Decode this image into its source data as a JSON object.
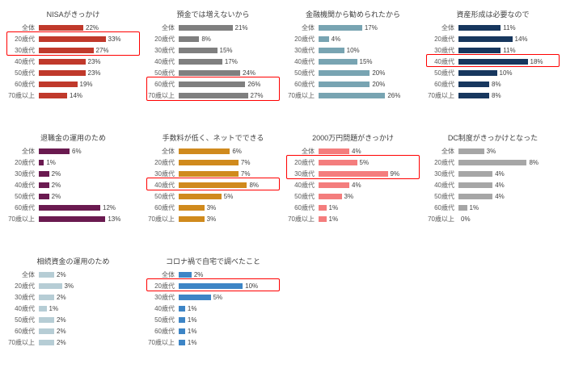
{
  "page": {
    "background": "#ffffff",
    "highlight_box_color": "#ff0000"
  },
  "categories": [
    "全体",
    "20歳代",
    "30歳代",
    "40歳代",
    "50歳代",
    "60歳代",
    "70歳以上"
  ],
  "chart_data": [
    {
      "type": "bar",
      "orientation": "horizontal",
      "title": "NISAがきっかけ",
      "color": "#c0392b",
      "unit": "%",
      "xlim": [
        0,
        38
      ],
      "categories": [
        "全体",
        "20歳代",
        "30歳代",
        "40歳代",
        "50歳代",
        "60歳代",
        "70歳以上"
      ],
      "values": [
        22,
        33,
        27,
        23,
        23,
        19,
        14
      ],
      "value_labels": [
        "22%",
        "33%",
        "27%",
        "23%",
        "23%",
        "19%",
        "14%"
      ],
      "highlighted_categories": [
        "20歳代",
        "30歳代"
      ],
      "highlight_rows": [
        1,
        2
      ]
    },
    {
      "type": "bar",
      "orientation": "horizontal",
      "title": "預金では増えないから",
      "color": "#7f7f7f",
      "unit": "%",
      "xlim": [
        0,
        30
      ],
      "categories": [
        "全体",
        "20歳代",
        "30歳代",
        "40歳代",
        "50歳代",
        "60歳代",
        "70歳以上"
      ],
      "values": [
        21,
        8,
        15,
        17,
        24,
        26,
        27
      ],
      "value_labels": [
        "21%",
        "8%",
        "15%",
        "17%",
        "24%",
        "26%",
        "27%"
      ],
      "highlighted_categories": [
        "60歳代",
        "70歳以上"
      ],
      "highlight_rows": [
        5,
        6
      ]
    },
    {
      "type": "bar",
      "orientation": "horizontal",
      "title": "金融機関から勧められたから",
      "color": "#78a4b2",
      "unit": "%",
      "xlim": [
        0,
        30
      ],
      "categories": [
        "全体",
        "20歳代",
        "30歳代",
        "40歳代",
        "50歳代",
        "60歳代",
        "70歳以上"
      ],
      "values": [
        17,
        4,
        10,
        15,
        20,
        20,
        26
      ],
      "value_labels": [
        "17%",
        "4%",
        "10%",
        "15%",
        "20%",
        "20%",
        "26%"
      ],
      "highlighted_categories": [],
      "highlight_rows": []
    },
    {
      "type": "bar",
      "orientation": "horizontal",
      "title": "資産形成は必要なので",
      "color": "#17375e",
      "unit": "%",
      "xlim": [
        0,
        20
      ],
      "categories": [
        "全体",
        "20歳代",
        "30歳代",
        "40歳代",
        "50歳代",
        "60歳代",
        "70歳以上"
      ],
      "values": [
        11,
        14,
        11,
        18,
        10,
        8,
        8
      ],
      "value_labels": [
        "11%",
        "14%",
        "11%",
        "18%",
        "10%",
        "8%",
        "8%"
      ],
      "highlighted_categories": [
        "40歳代"
      ],
      "highlight_rows": [
        3
      ]
    },
    {
      "type": "bar",
      "orientation": "horizontal",
      "title": "退職金の運用のため",
      "color": "#6a1a50",
      "unit": "%",
      "xlim": [
        0,
        15
      ],
      "categories": [
        "全体",
        "20歳代",
        "30歳代",
        "40歳代",
        "50歳代",
        "60歳代",
        "70歳以上"
      ],
      "values": [
        6,
        1,
        2,
        2,
        2,
        12,
        13
      ],
      "value_labels": [
        "6%",
        "1%",
        "2%",
        "2%",
        "2%",
        "12%",
        "13%"
      ],
      "highlighted_categories": [],
      "highlight_rows": []
    },
    {
      "type": "bar",
      "orientation": "horizontal",
      "title": "手数料が低く、ネットでできる",
      "color": "#d08a1d",
      "unit": "%",
      "xlim": [
        0,
        9
      ],
      "categories": [
        "全体",
        "20歳代",
        "30歳代",
        "40歳代",
        "50歳代",
        "60歳代",
        "70歳以上"
      ],
      "values": [
        6,
        7,
        7,
        8,
        5,
        3,
        3
      ],
      "value_labels": [
        "6%",
        "7%",
        "7%",
        "8%",
        "5%",
        "3%",
        "3%"
      ],
      "highlighted_categories": [
        "40歳代"
      ],
      "highlight_rows": [
        3
      ]
    },
    {
      "type": "bar",
      "orientation": "horizontal",
      "title": "2000万円問題がきっかけ",
      "color": "#f47d7d",
      "unit": "%",
      "xlim": [
        0,
        10
      ],
      "categories": [
        "全体",
        "20歳代",
        "30歳代",
        "40歳代",
        "50歳代",
        "60歳代",
        "70歳以上"
      ],
      "values": [
        4,
        5,
        9,
        4,
        3,
        1,
        1
      ],
      "value_labels": [
        "4%",
        "5%",
        "9%",
        "4%",
        "3%",
        "1%",
        "1%"
      ],
      "highlighted_categories": [
        "20歳代",
        "30歳代"
      ],
      "highlight_rows": [
        1,
        2
      ]
    },
    {
      "type": "bar",
      "orientation": "horizontal",
      "title": "DC制度がきっかけとなった",
      "color": "#a6a6a6",
      "unit": "%",
      "xlim": [
        0,
        9
      ],
      "categories": [
        "全体",
        "20歳代",
        "30歳代",
        "40歳代",
        "50歳代",
        "60歳代",
        "70歳以上"
      ],
      "values": [
        3,
        8,
        4,
        4,
        4,
        1,
        0
      ],
      "value_labels": [
        "3%",
        "8%",
        "4%",
        "4%",
        "4%",
        "1%",
        "0%"
      ],
      "highlighted_categories": [],
      "highlight_rows": []
    },
    {
      "type": "bar",
      "orientation": "horizontal",
      "title": "相続資金の運用のため",
      "color": "#b6cdd5",
      "unit": "%",
      "xlim": [
        0,
        10
      ],
      "categories": [
        "全体",
        "20歳代",
        "30歳代",
        "40歳代",
        "50歳代",
        "60歳代",
        "70歳以上"
      ],
      "values": [
        2,
        3,
        2,
        1,
        2,
        2,
        2
      ],
      "value_labels": [
        "2%",
        "3%",
        "2%",
        "1%",
        "2%",
        "2%",
        "2%"
      ],
      "highlighted_categories": [],
      "highlight_rows": []
    },
    {
      "type": "bar",
      "orientation": "horizontal",
      "title": "コロナ禍で自宅で調べたこと",
      "color": "#3d85c6",
      "unit": "%",
      "xlim": [
        0,
        12
      ],
      "categories": [
        "全体",
        "20歳代",
        "30歳代",
        "40歳代",
        "50歳代",
        "60歳代",
        "70歳以上"
      ],
      "values": [
        2,
        10,
        5,
        1,
        1,
        1,
        1
      ],
      "value_labels": [
        "2%",
        "10%",
        "5%",
        "1%",
        "1%",
        "1%",
        "1%"
      ],
      "highlighted_categories": [
        "20歳代"
      ],
      "highlight_rows": [
        1
      ]
    }
  ]
}
